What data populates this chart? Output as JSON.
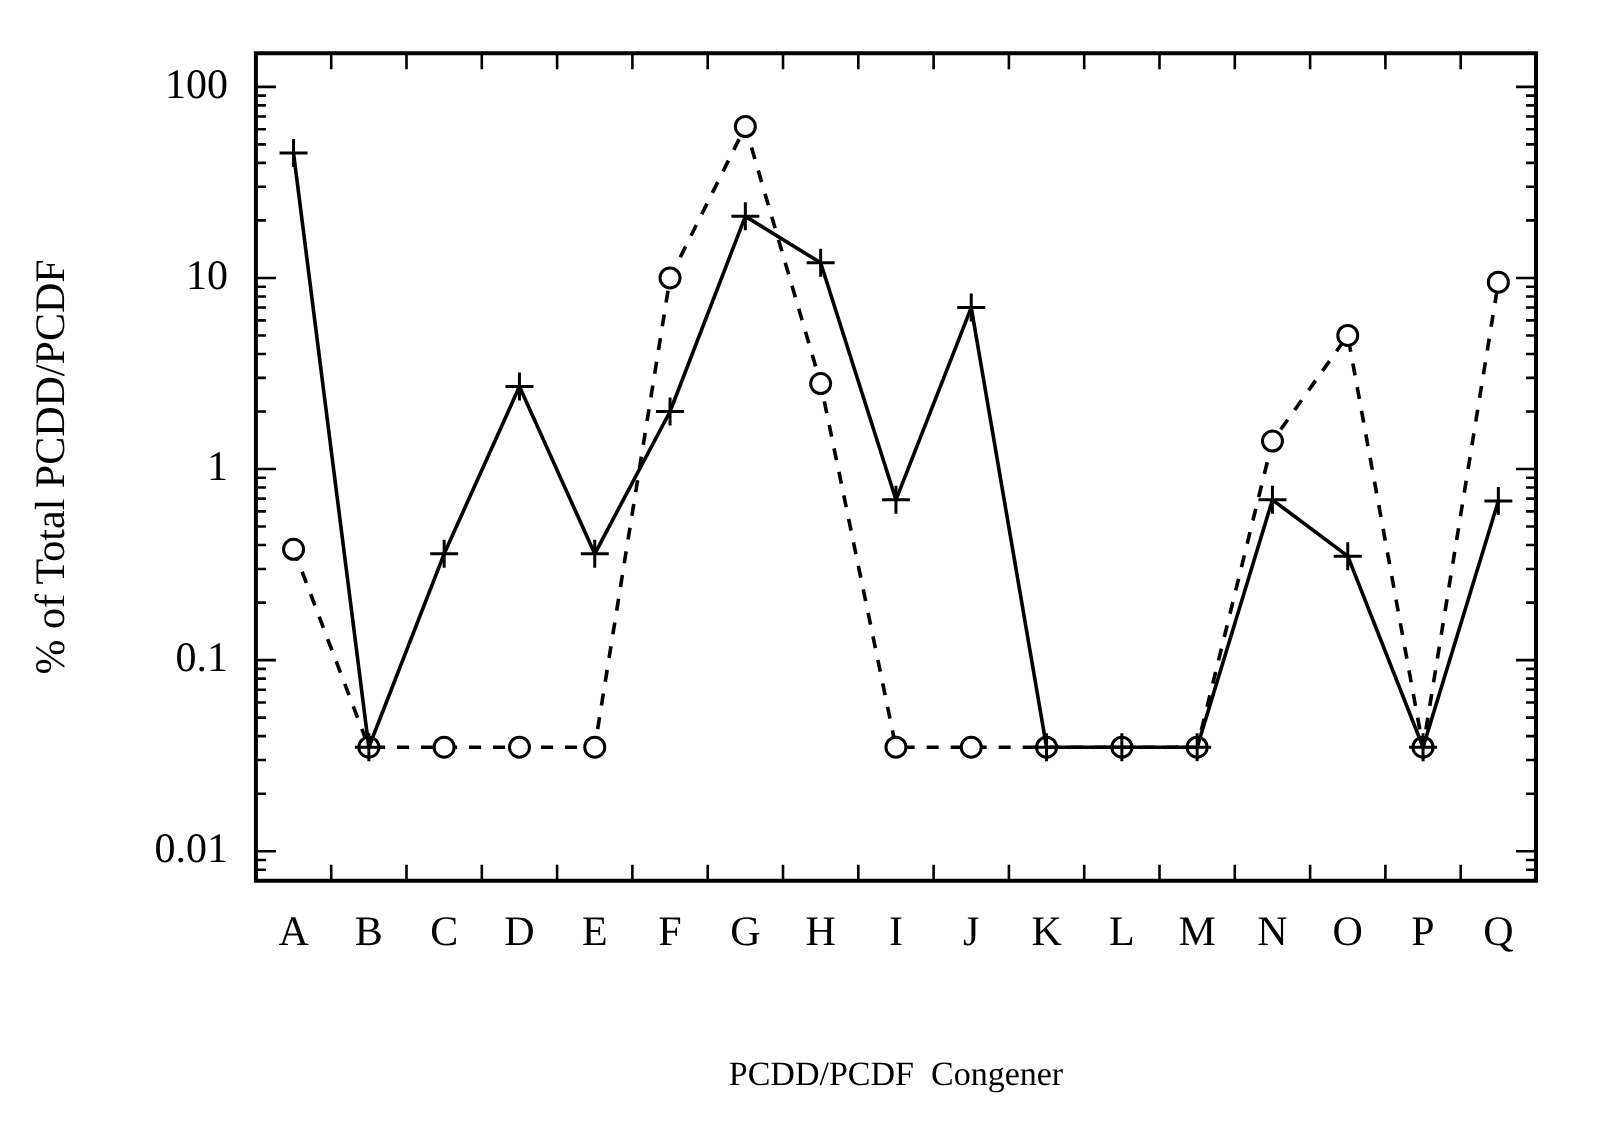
{
  "chart_data": {
    "type": "line",
    "xlabel": "PCDD/PCDF  Congener",
    "ylabel": "% of Total PCDD/PCDF",
    "categories": [
      "A",
      "B",
      "C",
      "D",
      "E",
      "F",
      "G",
      "H",
      "I",
      "J",
      "K",
      "L",
      "M",
      "N",
      "O",
      "P",
      "Q"
    ],
    "series": [
      {
        "color": "#000000",
        "marker": "cross",
        "line_style": "solid",
        "values": [
          45,
          0.035,
          0.36,
          2.7,
          0.36,
          2.0,
          21,
          12,
          0.69,
          7,
          0.035,
          0.035,
          0.035,
          0.69,
          0.35,
          0.035,
          0.68
        ]
      },
      {
        "color": "#000000",
        "marker": "circle",
        "line_style": "dashed",
        "values": [
          0.38,
          0.035,
          0.035,
          0.035,
          0.035,
          10,
          62,
          2.8,
          0.035,
          0.035,
          0.035,
          0.035,
          0.035,
          1.4,
          5,
          0.035,
          9.5
        ]
      }
    ],
    "log": "y",
    "ylim": [
      0.007,
      150
    ],
    "yticks": [
      {
        "value": 0.007,
        "label": null
      },
      {
        "value": 0.008,
        "label": null
      },
      {
        "value": 0.009,
        "label": null
      },
      0.01,
      {
        "value": 0.02,
        "label": null
      },
      {
        "value": 0.03,
        "label": null
      },
      {
        "value": 0.04,
        "label": null
      },
      {
        "value": 0.05,
        "label": null
      },
      {
        "value": 0.06,
        "label": null
      },
      {
        "value": 0.07,
        "label": null
      },
      {
        "value": 0.08,
        "label": null
      },
      {
        "value": 0.09,
        "label": null
      },
      0.1,
      {
        "value": 0.2,
        "label": null
      },
      {
        "value": 0.3,
        "label": null
      },
      {
        "value": 0.4,
        "label": null
      },
      {
        "value": 0.5,
        "label": null
      },
      {
        "value": 0.6,
        "label": null
      },
      {
        "value": 0.7,
        "label": null
      },
      {
        "value": 0.8,
        "label": null
      },
      {
        "value": 0.9,
        "label": null
      },
      1,
      {
        "value": 2,
        "label": null
      },
      {
        "value": 3,
        "label": null
      },
      {
        "value": 4,
        "label": null
      },
      {
        "value": 5,
        "label": null
      },
      {
        "value": 6,
        "label": null
      },
      {
        "value": 7,
        "label": null
      },
      {
        "value": 8,
        "label": null
      },
      {
        "value": 9,
        "label": null
      },
      10,
      {
        "value": 20,
        "label": null
      },
      {
        "value": 30,
        "label": null
      },
      {
        "value": 40,
        "label": null
      },
      {
        "value": 50,
        "label": null
      },
      {
        "value": 60,
        "label": null
      },
      {
        "value": 70,
        "label": null
      },
      {
        "value": 80,
        "label": null
      },
      {
        "value": 90,
        "label": null
      },
      100
    ],
    "grid": false,
    "legend": false
  }
}
